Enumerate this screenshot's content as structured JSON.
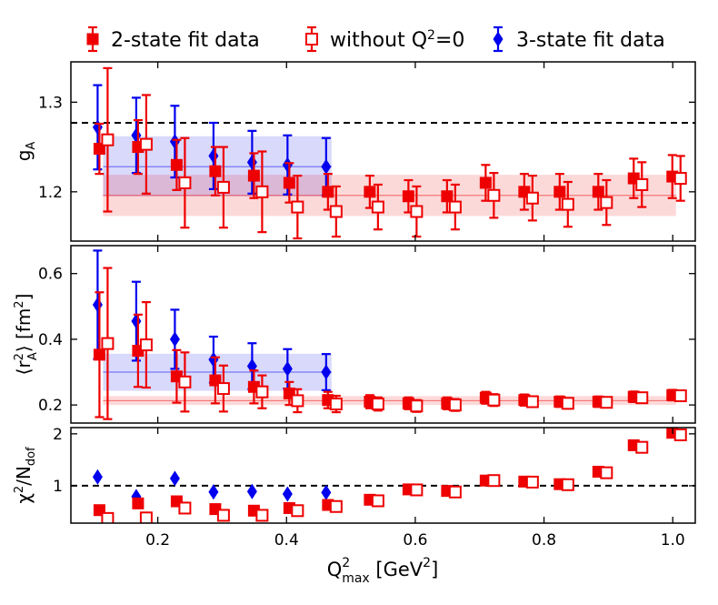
{
  "chart_data": {
    "type": "scatter",
    "legend": {
      "placement": "top",
      "entries": [
        {
          "key": "red_filled",
          "label": "2-state fit data",
          "color": "#ee0000",
          "marker": "filled-square"
        },
        {
          "key": "red_open",
          "label": "without Q",
          "sup": "2",
          "suffix": "=0",
          "color": "#ee0000",
          "marker": "open-square"
        },
        {
          "key": "blue",
          "label": "3-state fit data",
          "color": "#0000ee",
          "marker": "diamond"
        }
      ]
    },
    "xlabel": {
      "main": "Q",
      "sup": "2",
      "sub": "max",
      "unit": " [GeV",
      "unit_sup": "2",
      "unit_end": "]"
    },
    "xlim": [
      0.065,
      1.035
    ],
    "xticks": [
      "0.2",
      "0.4",
      "0.6",
      "0.8",
      "1.0"
    ],
    "x": [
      0.115,
      0.175,
      0.235,
      0.295,
      0.355,
      0.41,
      0.47,
      0.535,
      0.595,
      0.655,
      0.715,
      0.775,
      0.83,
      0.89,
      0.945,
      1.005
    ],
    "panels": [
      {
        "name": "gA",
        "ylabel": {
          "main": "g",
          "sub": "A"
        },
        "ylim": [
          1.145,
          1.345
        ],
        "yticks": [
          "1.2",
          "1.3"
        ],
        "ytick_values": [
          1.2,
          1.3
        ],
        "hline": 1.277,
        "bands": [
          {
            "color": "#0000ee",
            "x0": 0.115,
            "x1": 0.47,
            "center": 1.228,
            "low": 1.195,
            "high": 1.262
          },
          {
            "color": "#ee0000",
            "x0": 0.115,
            "x1": 1.005,
            "center": 1.196,
            "low": 1.173,
            "high": 1.219
          }
        ],
        "series": [
          {
            "key": "red_filled",
            "y": [
              1.248,
              1.25,
              1.23,
              1.223,
              1.218,
              1.21,
              1.2,
              1.2,
              1.195,
              1.195,
              1.21,
              1.2,
              1.2,
              1.2,
              1.215,
              1.217
            ],
            "err": [
              0.028,
              0.03,
              0.028,
              0.027,
              0.025,
              0.022,
              0.02,
              0.018,
              0.018,
              0.018,
              0.02,
              0.02,
              0.02,
              0.02,
              0.022,
              0.024
            ]
          },
          {
            "key": "red_open",
            "y": [
              1.258,
              1.253,
              1.21,
              1.205,
              1.2,
              1.183,
              1.178,
              1.183,
              1.178,
              1.183,
              1.196,
              1.193,
              1.186,
              1.188,
              1.208,
              1.215
            ],
            "err": [
              0.08,
              0.055,
              0.05,
              0.045,
              0.045,
              0.035,
              0.028,
              0.025,
              0.028,
              0.025,
              0.025,
              0.025,
              0.025,
              0.025,
              0.025,
              0.025
            ]
          },
          {
            "key": "blue",
            "y": [
              1.272,
              1.263,
              1.256,
              1.24,
              1.233,
              1.23,
              1.228
            ],
            "err": [
              0.047,
              0.042,
              0.04,
              0.037,
              0.035,
              0.033,
              0.032
            ]
          }
        ]
      },
      {
        "name": "rA2",
        "ylabel": {
          "main": "⟨r",
          "sup": "2",
          "sub": "A",
          "rest": "⟩ [fm",
          "rest_sup": "2",
          "rest_end": "]"
        },
        "ylim": [
          0.145,
          0.685
        ],
        "yticks": [
          "0.2",
          "0.4",
          "0.6"
        ],
        "ytick_values": [
          0.2,
          0.4,
          0.6
        ],
        "bands": [
          {
            "color": "#0000ee",
            "x0": 0.115,
            "x1": 0.47,
            "center": 0.3,
            "low": 0.243,
            "high": 0.356
          },
          {
            "color": "#ee0000",
            "x0": 0.115,
            "x1": 1.005,
            "center": 0.213,
            "low": 0.2,
            "high": 0.227
          }
        ],
        "series": [
          {
            "key": "red_filled",
            "y": [
              0.353,
              0.365,
              0.287,
              0.275,
              0.255,
              0.235,
              0.215,
              0.21,
              0.205,
              0.205,
              0.222,
              0.215,
              0.21,
              0.21,
              0.225,
              0.23
            ],
            "err": [
              0.19,
              0.11,
              0.08,
              0.07,
              0.05,
              0.035,
              0.025,
              0.02,
              0.018,
              0.018,
              0.018,
              0.017,
              0.016,
              0.016,
              0.016,
              0.016
            ]
          },
          {
            "key": "red_open",
            "y": [
              0.387,
              0.383,
              0.27,
              0.25,
              0.24,
              0.213,
              0.203,
              0.203,
              0.197,
              0.2,
              0.215,
              0.21,
              0.205,
              0.208,
              0.222,
              0.228
            ],
            "err": [
              0.23,
              0.13,
              0.09,
              0.07,
              0.05,
              0.035,
              0.025,
              0.02,
              0.018,
              0.018,
              0.018,
              0.016,
              0.016,
              0.015,
              0.015,
              0.015
            ]
          },
          {
            "key": "blue",
            "y": [
              0.505,
              0.455,
              0.4,
              0.338,
              0.318,
              0.31,
              0.3
            ],
            "err": [
              0.165,
              0.12,
              0.09,
              0.07,
              0.07,
              0.06,
              0.055
            ]
          }
        ]
      },
      {
        "name": "chi2",
        "ylabel": {
          "main": "χ",
          "sup": "2",
          "rest": "/N",
          "rest_sub": "dof"
        },
        "ylim": [
          0.28,
          2.12
        ],
        "yticks": [
          "1",
          "2"
        ],
        "ytick_values": [
          1,
          2
        ],
        "hline": 1.0,
        "bands": [],
        "series": [
          {
            "key": "red_filled",
            "y": [
              0.53,
              0.66,
              0.7,
              0.55,
              0.52,
              0.57,
              0.63,
              0.73,
              0.93,
              0.9,
              1.1,
              1.08,
              1.03,
              1.27,
              1.78,
              2.02
            ],
            "err": []
          },
          {
            "key": "red_open",
            "y": [
              0.37,
              0.38,
              0.57,
              0.43,
              0.43,
              0.52,
              0.6,
              0.71,
              0.92,
              0.88,
              1.1,
              1.07,
              1.02,
              1.25,
              1.74,
              1.98
            ],
            "err": []
          },
          {
            "key": "blue",
            "y": [
              1.17,
              0.79,
              1.14,
              0.88,
              0.89,
              0.84,
              0.87
            ],
            "err": []
          }
        ]
      }
    ]
  }
}
